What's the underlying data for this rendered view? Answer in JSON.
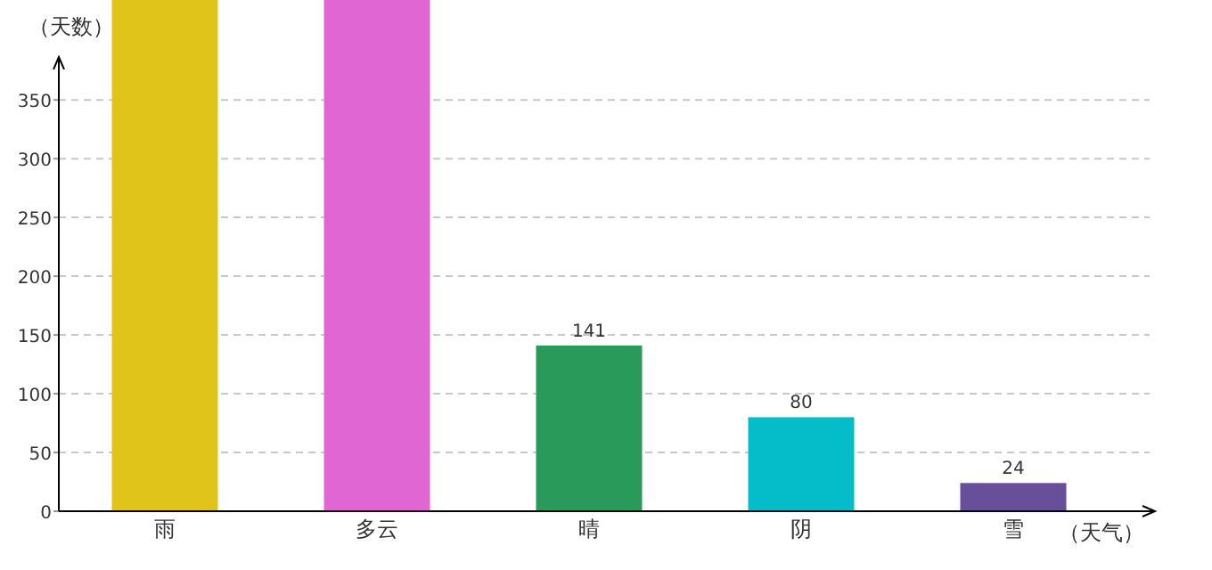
{
  "chart_data": {
    "type": "bar",
    "xlabel": "（天气）",
    "ylabel": "（天数）",
    "categories": [
      "雨",
      "多云",
      "晴",
      "阴",
      "雪"
    ],
    "values": [
      435,
      435,
      141,
      80,
      24
    ],
    "colors": [
      "#e1c419",
      "#e066d4",
      "#2a9a5a",
      "#05bdc9",
      "#674f9a"
    ],
    "value_labels": [
      null,
      null,
      "141",
      "80",
      "24"
    ],
    "ylim": [
      0,
      435
    ],
    "yticks": [
      0,
      50,
      100,
      150,
      200,
      250,
      300,
      350
    ],
    "grid": "y"
  }
}
